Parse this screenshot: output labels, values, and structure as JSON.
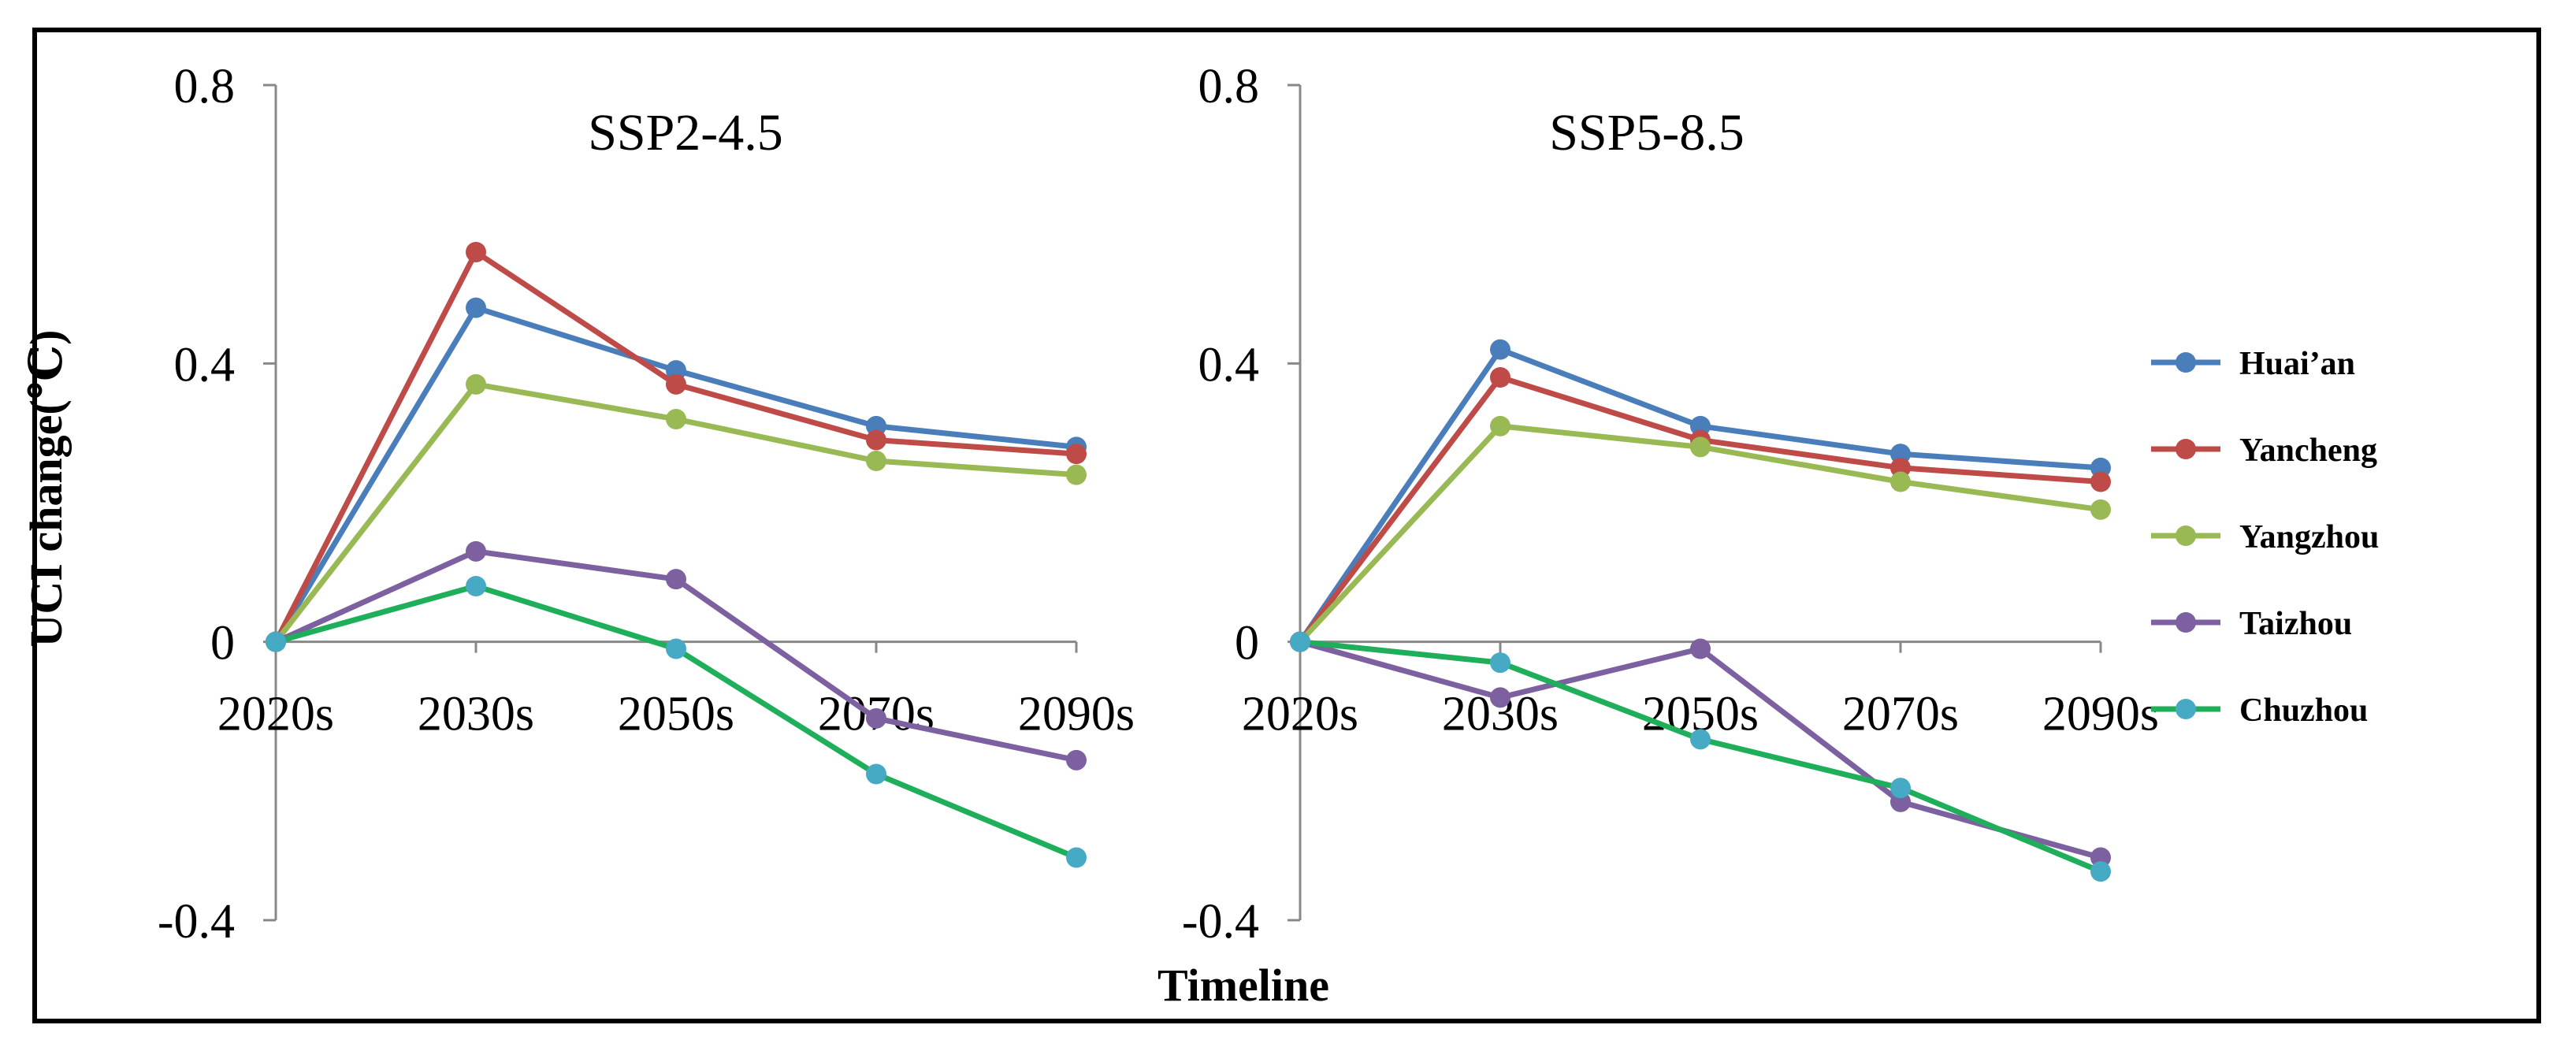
{
  "chart_data": {
    "type": "line",
    "ylabel": "UCI change(℃)",
    "xlabel": "Timeline",
    "categories": [
      "2020s",
      "2030s",
      "2050s",
      "2070s",
      "2090s"
    ],
    "ylim": [
      -0.4,
      0.8
    ],
    "yticks": [
      -0.4,
      0,
      0.4,
      0.8
    ],
    "ytick_labels": [
      "-0.4",
      "0",
      "0.4",
      "0.8"
    ],
    "grid": false,
    "legend_position": "right",
    "series_styles": [
      {
        "name": "Huai’an",
        "color": "#4a7ebb"
      },
      {
        "name": "Yancheng",
        "color": "#be4b48"
      },
      {
        "name": "Yangzhou",
        "color": "#98b954"
      },
      {
        "name": "Taizhou",
        "color": "#7d60a0"
      },
      {
        "name": "Chuzhou",
        "color": "#46aac4",
        "line_color": "#1fae5a"
      }
    ],
    "panels": [
      {
        "title": "SSP2-4.5",
        "series": [
          {
            "name": "Huai’an",
            "values": [
              0,
              0.48,
              0.39,
              0.31,
              0.28
            ]
          },
          {
            "name": "Yancheng",
            "values": [
              0,
              0.56,
              0.37,
              0.29,
              0.27
            ]
          },
          {
            "name": "Yangzhou",
            "values": [
              0,
              0.37,
              0.32,
              0.26,
              0.24
            ]
          },
          {
            "name": "Taizhou",
            "values": [
              0,
              0.13,
              0.09,
              -0.11,
              -0.17
            ]
          },
          {
            "name": "Chuzhou",
            "values": [
              0,
              0.08,
              -0.01,
              -0.19,
              -0.31
            ]
          }
        ]
      },
      {
        "title": "SSP5-8.5",
        "series": [
          {
            "name": "Huai’an",
            "values": [
              0,
              0.42,
              0.31,
              0.27,
              0.25
            ]
          },
          {
            "name": "Yancheng",
            "values": [
              0,
              0.38,
              0.29,
              0.25,
              0.23
            ]
          },
          {
            "name": "Yangzhou",
            "values": [
              0,
              0.31,
              0.28,
              0.23,
              0.19
            ]
          },
          {
            "name": "Taizhou",
            "values": [
              0,
              -0.08,
              -0.01,
              -0.23,
              -0.31
            ]
          },
          {
            "name": "Chuzhou",
            "values": [
              0,
              -0.03,
              -0.14,
              -0.21,
              -0.33
            ]
          }
        ]
      }
    ]
  }
}
